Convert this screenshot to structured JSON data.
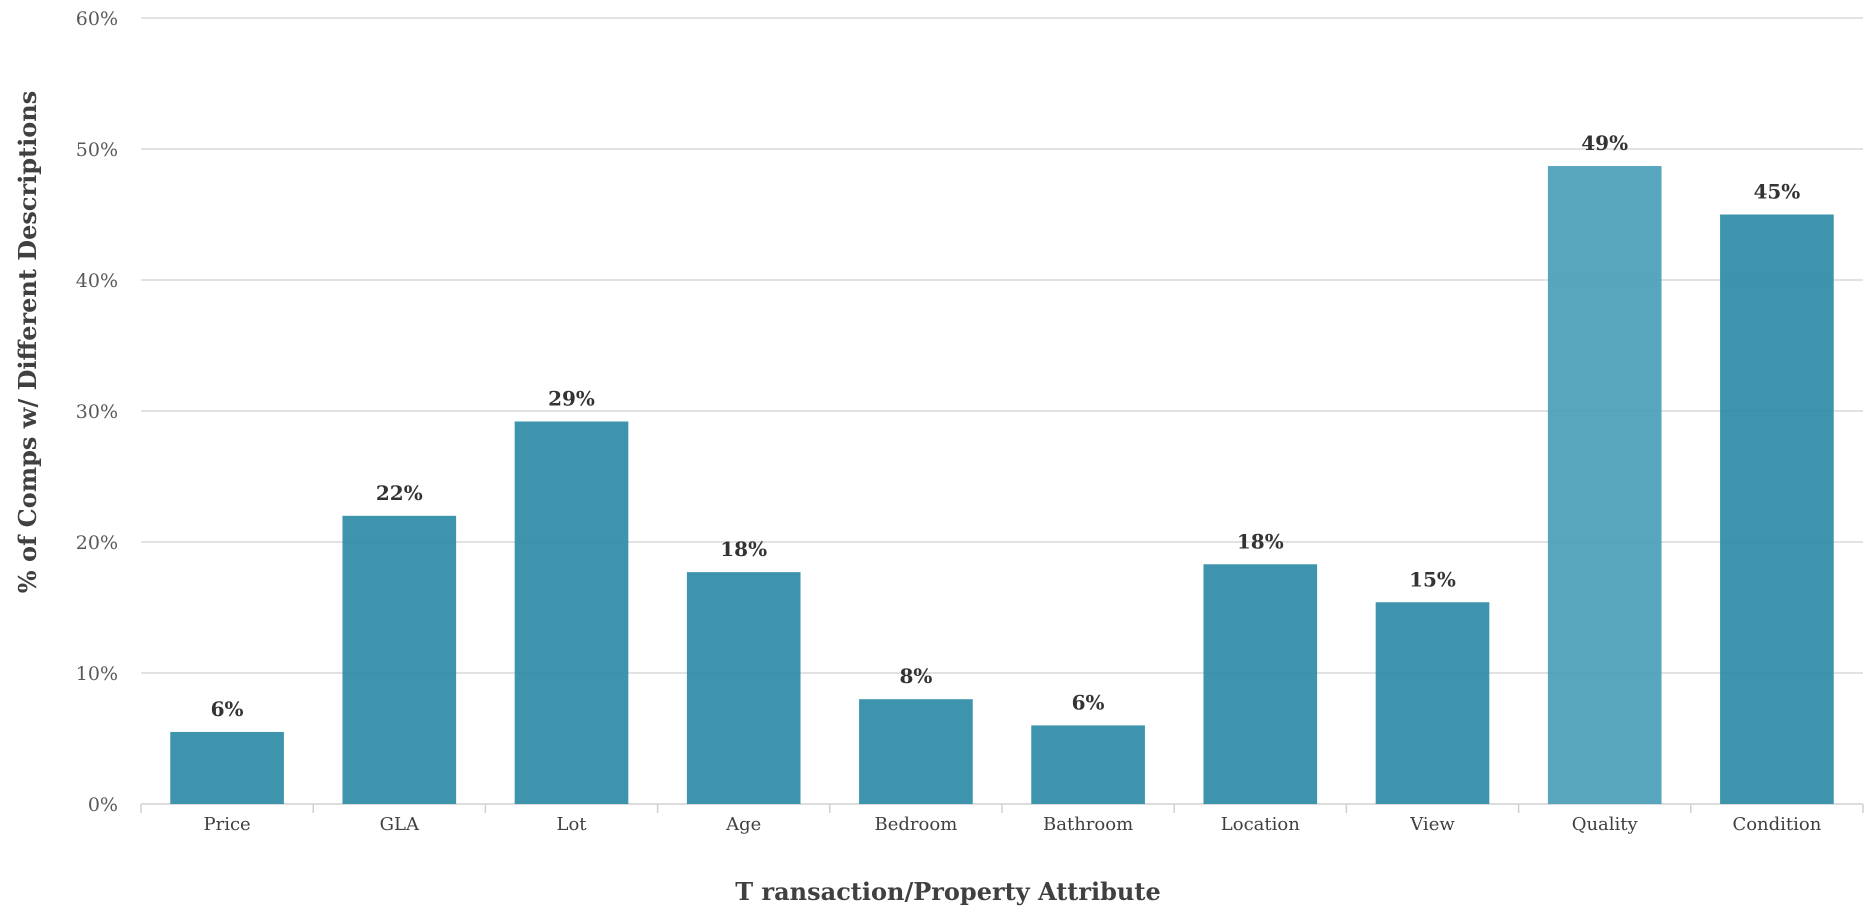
{
  "chart_data": {
    "type": "bar",
    "title": "",
    "xlabel": "T ransaction/Property Attribute",
    "ylabel": "% of Comps w/ Different Descriptions",
    "categories": [
      "Price",
      "GLA",
      "Lot",
      "Age",
      "Bedroom",
      "Bathroom",
      "Location",
      "View",
      "Quality",
      "Condition"
    ],
    "values": [
      5.5,
      22,
      29.2,
      17.7,
      8,
      6,
      18.3,
      15.4,
      48.7,
      45
    ],
    "data_labels": [
      "6%",
      "22%",
      "29%",
      "18%",
      "8%",
      "6%",
      "18%",
      "15%",
      "49%",
      "45%"
    ],
    "y_ticks": [
      "0%",
      "10%",
      "20%",
      "30%",
      "40%",
      "50%",
      "60%"
    ],
    "ylim": [
      0,
      60
    ],
    "grid": true,
    "legend": "none",
    "colors": {
      "bar": "#2e8ba6",
      "highlight_bar": "#4a9db8"
    }
  }
}
